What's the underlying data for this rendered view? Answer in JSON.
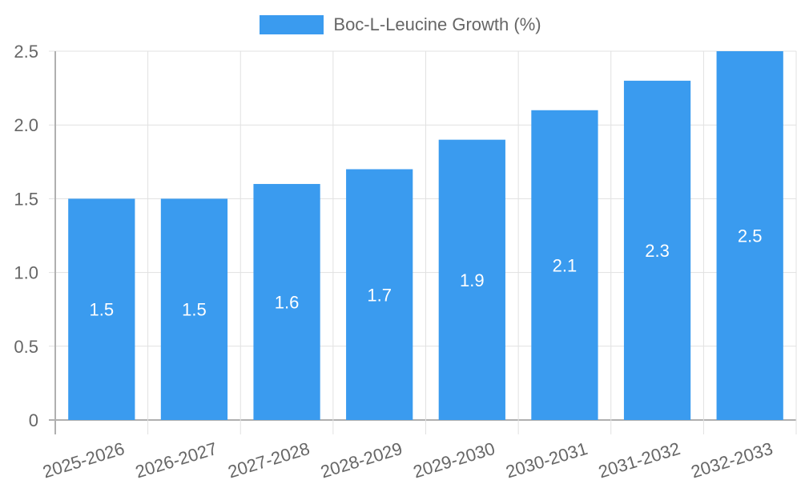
{
  "chart_data": {
    "type": "bar",
    "title": "",
    "xlabel": "",
    "ylabel": "",
    "legend": {
      "position": "top",
      "entries": [
        "Boc-L-Leucine Growth (%)"
      ]
    },
    "categories": [
      "2025-2026",
      "2026-2027",
      "2027-2028",
      "2028-2029",
      "2029-2030",
      "2030-2031",
      "2031-2032",
      "2032-2033"
    ],
    "series": [
      {
        "name": "Boc-L-Leucine Growth (%)",
        "values": [
          1.5,
          1.5,
          1.6,
          1.7,
          1.9,
          2.1,
          2.3,
          2.5
        ],
        "color": "#3a9bef"
      }
    ],
    "data_labels": [
      "1.5",
      "1.5",
      "1.6",
      "1.7",
      "1.9",
      "2.1",
      "2.3",
      "2.5"
    ],
    "ylim": [
      0,
      2.5
    ],
    "yticks": [
      "0",
      "0.5",
      "1.0",
      "1.5",
      "2.0",
      "2.5"
    ],
    "grid": true
  },
  "legend": {
    "label": "Boc-L-Leucine Growth (%)"
  }
}
